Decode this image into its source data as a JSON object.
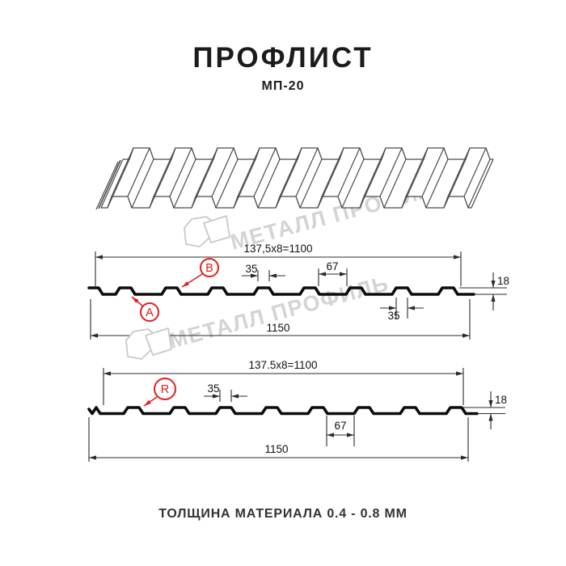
{
  "title": "ПРОФЛИСТ",
  "subtitle": "МП-20",
  "footer_note": "ТОЛЩИНА МАТЕРИАЛА 0.4 - 0.8 ММ",
  "watermark": {
    "text": "МЕТАЛЛ ПРОФИЛЬ",
    "color": "#d4d4d4",
    "logo_stroke": "#c9c9c9"
  },
  "colors": {
    "ink": "#111111",
    "red": "#e01f1f",
    "profile_line": "#0c0c0c",
    "dim_line": "#2b2b2b",
    "sketch_line": "#4a4a4a"
  },
  "section_top": {
    "top_dim": "137,5x8=1100",
    "crest_dim": "35",
    "valley_dim": "67",
    "height_dim": "18",
    "crest_dim_bottom": "35",
    "overall_dim": "1150",
    "label_a": "A",
    "label_b": "B"
  },
  "section_bottom": {
    "top_dim": "137.5x8=1100",
    "crest_dim": "35",
    "valley_dim": "67",
    "height_dim": "18",
    "overall_dim": "1150",
    "label_r": "R"
  }
}
